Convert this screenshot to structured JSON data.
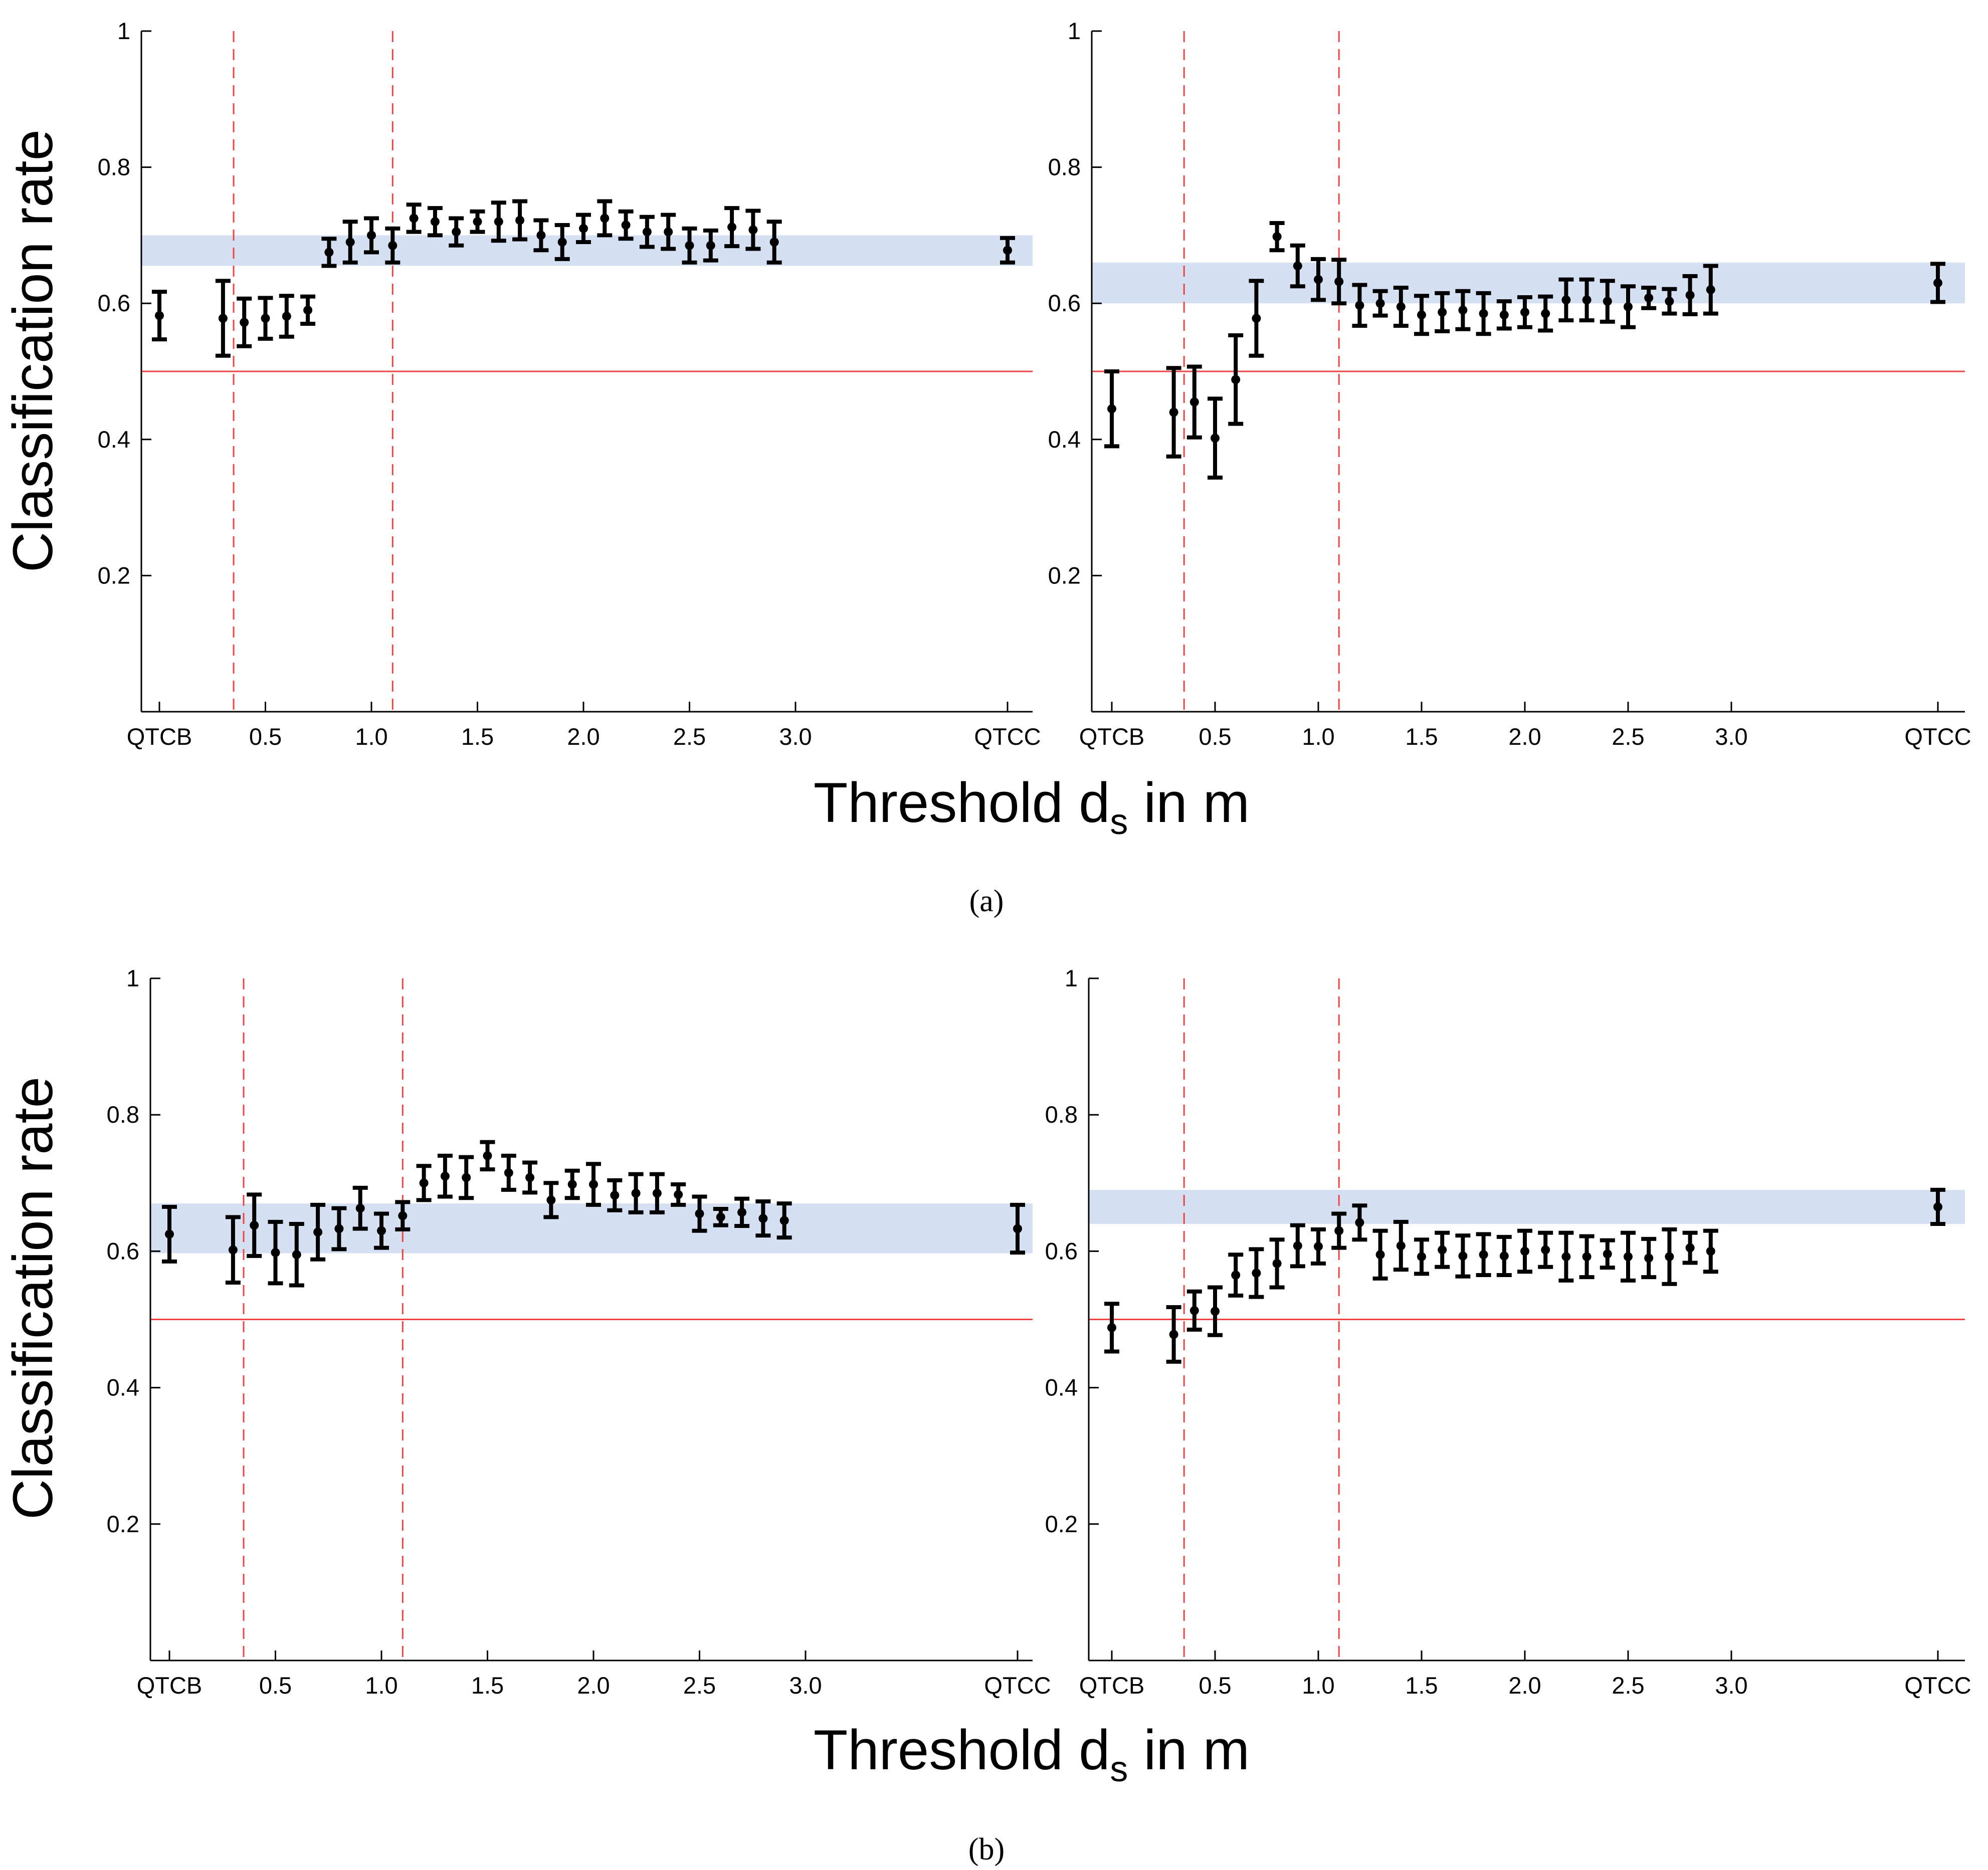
{
  "colors": {
    "band": "#d6e0f3",
    "reference": "#ee4444",
    "markers": "#000000",
    "axes": "#000000"
  },
  "labels": {
    "ylabel": "Classification rate",
    "xlabel_main": "Threshold d",
    "xlabel_sub": "s",
    "xlabel_tail": " in m",
    "caption_a": "(a)",
    "caption_b": "(b)"
  },
  "chart_data": [
    {
      "type": "scatter",
      "panel": "a-left",
      "ylim": [
        0,
        1
      ],
      "yticks": [
        0.2,
        0.4,
        0.6,
        0.8,
        1
      ],
      "ytick_labels": [
        "0.2",
        "0.4",
        "0.6",
        "0.8",
        "1"
      ],
      "xticks": [
        0.0,
        0.5,
        1.0,
        1.5,
        2.0,
        2.5,
        3.0,
        4.0
      ],
      "xtick_labels": [
        "QTCB",
        "0.5",
        "1.0",
        "1.5",
        "2.0",
        "2.5",
        "3.0",
        "QTCC"
      ],
      "reference_line": 0.5,
      "vlines": [
        0.35,
        1.1
      ],
      "band": [
        0.655,
        0.7
      ],
      "x": [
        0.0,
        0.3,
        0.4,
        0.5,
        0.6,
        0.7,
        0.8,
        0.9,
        1.0,
        1.1,
        1.2,
        1.3,
        1.4,
        1.5,
        1.6,
        1.7,
        1.8,
        1.9,
        2.0,
        2.1,
        2.2,
        2.3,
        2.4,
        2.5,
        2.6,
        2.7,
        2.8,
        2.9,
        4.0
      ],
      "y": [
        0.582,
        0.578,
        0.572,
        0.578,
        0.581,
        0.59,
        0.675,
        0.69,
        0.7,
        0.685,
        0.725,
        0.72,
        0.705,
        0.72,
        0.72,
        0.722,
        0.7,
        0.69,
        0.71,
        0.725,
        0.715,
        0.705,
        0.705,
        0.685,
        0.685,
        0.712,
        0.708,
        0.69,
        0.678
      ],
      "err": [
        0.035,
        0.055,
        0.035,
        0.03,
        0.03,
        0.02,
        0.02,
        0.03,
        0.025,
        0.025,
        0.02,
        0.02,
        0.02,
        0.015,
        0.028,
        0.028,
        0.022,
        0.025,
        0.02,
        0.025,
        0.02,
        0.022,
        0.025,
        0.025,
        0.022,
        0.028,
        0.028,
        0.03,
        0.018
      ]
    },
    {
      "type": "scatter",
      "panel": "a-right",
      "ylim": [
        0,
        1
      ],
      "yticks": [
        0.2,
        0.4,
        0.6,
        0.8,
        1
      ],
      "ytick_labels": [
        "0.2",
        "0.4",
        "0.6",
        "0.8",
        "1"
      ],
      "xticks": [
        0.0,
        0.5,
        1.0,
        1.5,
        2.0,
        2.5,
        3.0,
        4.0
      ],
      "xtick_labels": [
        "QTCB",
        "0.5",
        "1.0",
        "1.5",
        "2.0",
        "2.5",
        "3.0",
        "QTCC"
      ],
      "reference_line": 0.5,
      "vlines": [
        0.35,
        1.1
      ],
      "band": [
        0.6,
        0.66
      ],
      "x": [
        0.0,
        0.3,
        0.4,
        0.5,
        0.6,
        0.7,
        0.8,
        0.9,
        1.0,
        1.1,
        1.2,
        1.3,
        1.4,
        1.5,
        1.6,
        1.7,
        1.8,
        1.9,
        2.0,
        2.1,
        2.2,
        2.3,
        2.4,
        2.5,
        2.6,
        2.7,
        2.8,
        2.9,
        4.0
      ],
      "y": [
        0.445,
        0.44,
        0.455,
        0.402,
        0.488,
        0.578,
        0.698,
        0.655,
        0.635,
        0.632,
        0.597,
        0.6,
        0.595,
        0.583,
        0.587,
        0.59,
        0.585,
        0.583,
        0.587,
        0.585,
        0.605,
        0.605,
        0.603,
        0.595,
        0.608,
        0.603,
        0.612,
        0.62,
        0.63
      ],
      "err": [
        0.055,
        0.065,
        0.052,
        0.058,
        0.065,
        0.055,
        0.02,
        0.03,
        0.03,
        0.032,
        0.03,
        0.018,
        0.028,
        0.028,
        0.028,
        0.028,
        0.03,
        0.02,
        0.022,
        0.025,
        0.03,
        0.03,
        0.03,
        0.03,
        0.015,
        0.018,
        0.028,
        0.035,
        0.028
      ]
    },
    {
      "type": "scatter",
      "panel": "b-left",
      "ylim": [
        0,
        1
      ],
      "yticks": [
        0.2,
        0.4,
        0.6,
        0.8,
        1
      ],
      "ytick_labels": [
        "0.2",
        "0.4",
        "0.6",
        "0.8",
        "1"
      ],
      "xticks": [
        0.0,
        0.5,
        1.0,
        1.5,
        2.0,
        2.5,
        3.0,
        4.0
      ],
      "xtick_labels": [
        "QTCB",
        "0.5",
        "1.0",
        "1.5",
        "2.0",
        "2.5",
        "3.0",
        "QTCC"
      ],
      "reference_line": 0.5,
      "vlines": [
        0.35,
        1.1
      ],
      "band": [
        0.597,
        0.67
      ],
      "x": [
        0.0,
        0.3,
        0.4,
        0.5,
        0.6,
        0.7,
        0.8,
        0.9,
        1.0,
        1.1,
        1.2,
        1.3,
        1.4,
        1.5,
        1.6,
        1.7,
        1.8,
        1.9,
        2.0,
        2.1,
        2.2,
        2.3,
        2.4,
        2.5,
        2.6,
        2.7,
        2.8,
        2.9,
        4.0
      ],
      "y": [
        0.625,
        0.602,
        0.638,
        0.598,
        0.595,
        0.628,
        0.633,
        0.663,
        0.63,
        0.652,
        0.7,
        0.71,
        0.708,
        0.74,
        0.715,
        0.708,
        0.675,
        0.698,
        0.698,
        0.682,
        0.685,
        0.685,
        0.683,
        0.655,
        0.65,
        0.657,
        0.648,
        0.645,
        0.633
      ],
      "err": [
        0.04,
        0.048,
        0.045,
        0.045,
        0.045,
        0.04,
        0.03,
        0.03,
        0.025,
        0.02,
        0.025,
        0.03,
        0.03,
        0.02,
        0.025,
        0.022,
        0.025,
        0.02,
        0.03,
        0.022,
        0.028,
        0.028,
        0.015,
        0.025,
        0.012,
        0.02,
        0.025,
        0.025,
        0.035
      ]
    },
    {
      "type": "scatter",
      "panel": "b-right",
      "ylim": [
        0,
        1
      ],
      "yticks": [
        0.2,
        0.4,
        0.6,
        0.8,
        1
      ],
      "ytick_labels": [
        "0.2",
        "0.4",
        "0.6",
        "0.8",
        "1"
      ],
      "xticks": [
        0.0,
        0.5,
        1.0,
        1.5,
        2.0,
        2.5,
        3.0,
        4.0
      ],
      "xtick_labels": [
        "QTCB",
        "0.5",
        "1.0",
        "1.5",
        "2.0",
        "2.5",
        "3.0",
        "QTCC"
      ],
      "reference_line": 0.5,
      "vlines": [
        0.35,
        1.1
      ],
      "band": [
        0.64,
        0.69
      ],
      "x": [
        0.0,
        0.3,
        0.4,
        0.5,
        0.6,
        0.7,
        0.8,
        0.9,
        1.0,
        1.1,
        1.2,
        1.3,
        1.4,
        1.5,
        1.6,
        1.7,
        1.8,
        1.9,
        2.0,
        2.1,
        2.2,
        2.3,
        2.4,
        2.5,
        2.6,
        2.7,
        2.8,
        2.9,
        4.0
      ],
      "y": [
        0.488,
        0.478,
        0.513,
        0.512,
        0.565,
        0.568,
        0.582,
        0.608,
        0.607,
        0.63,
        0.642,
        0.595,
        0.608,
        0.592,
        0.602,
        0.593,
        0.595,
        0.593,
        0.6,
        0.602,
        0.592,
        0.592,
        0.596,
        0.592,
        0.59,
        0.592,
        0.605,
        0.6,
        0.665
      ],
      "err": [
        0.035,
        0.04,
        0.028,
        0.035,
        0.03,
        0.035,
        0.035,
        0.03,
        0.025,
        0.025,
        0.025,
        0.035,
        0.035,
        0.025,
        0.025,
        0.03,
        0.03,
        0.028,
        0.03,
        0.025,
        0.035,
        0.03,
        0.02,
        0.035,
        0.028,
        0.04,
        0.022,
        0.03,
        0.025
      ]
    }
  ]
}
